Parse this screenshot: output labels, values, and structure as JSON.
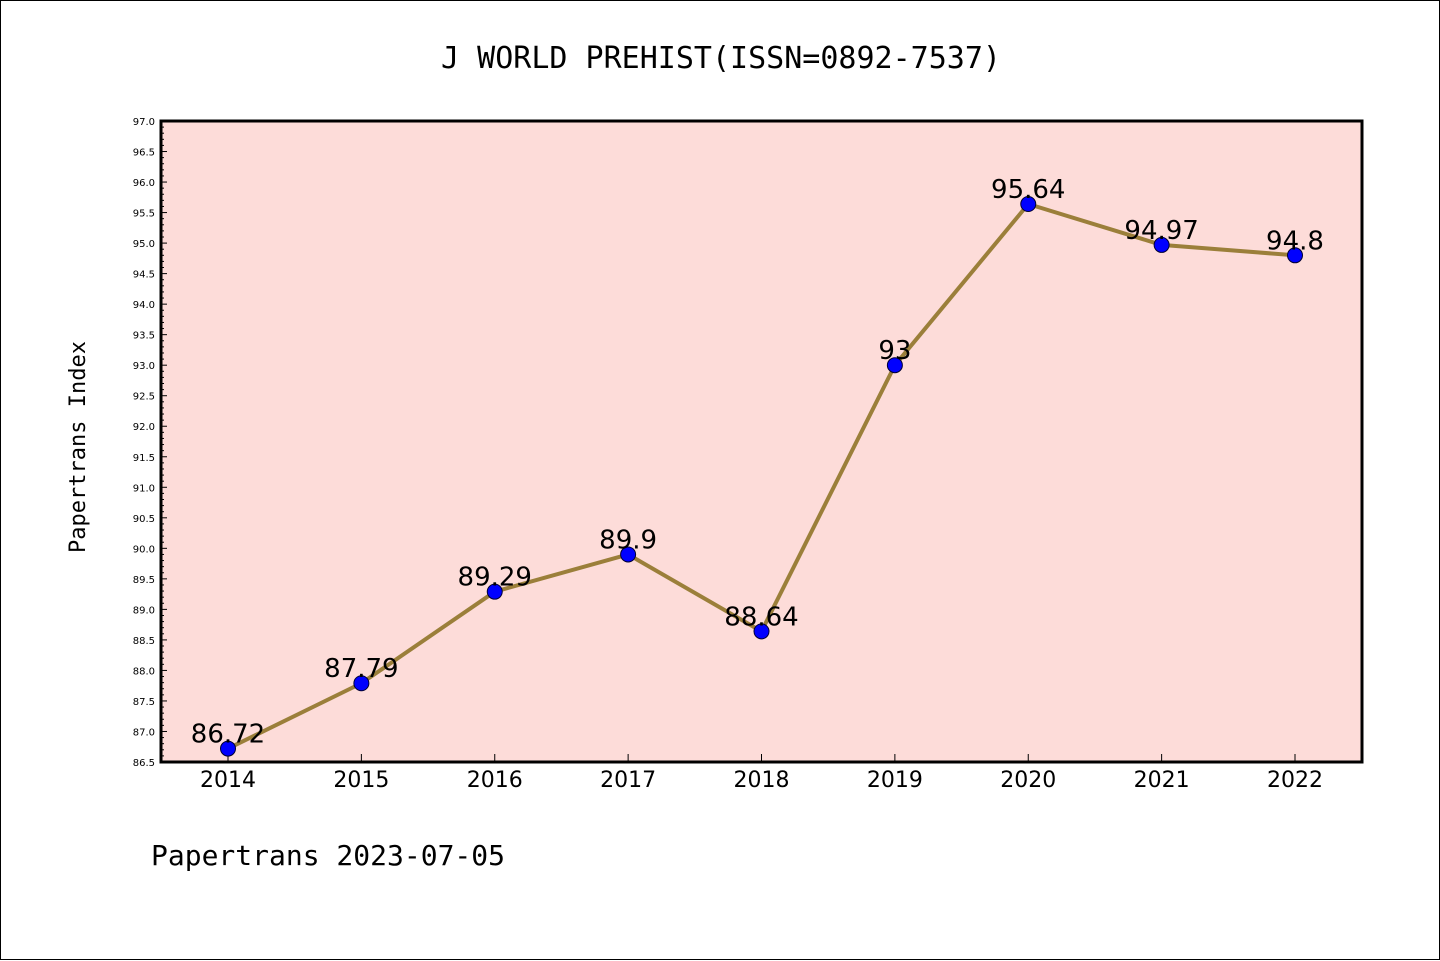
{
  "chart_data": {
    "type": "line",
    "title": "J WORLD PREHIST(ISSN=0892-7537)",
    "xlabel": "",
    "ylabel": "Papertrans Index",
    "categories": [
      "2014",
      "2015",
      "2016",
      "2017",
      "2018",
      "2019",
      "2020",
      "2021",
      "2022"
    ],
    "series": [
      {
        "values": [
          86.72,
          87.79,
          89.29,
          89.9,
          88.64,
          93,
          95.64,
          94.97,
          94.8
        ],
        "labels": [
          "86.72",
          "87.79",
          "89.29",
          "89.9",
          "88.64",
          "93",
          "95.64",
          "94.97",
          "94.8"
        ]
      }
    ],
    "ylim": [
      86.5,
      97.0
    ],
    "yticks": [
      "86.5",
      "87.0",
      "87.5",
      "88.0",
      "88.5",
      "89.0",
      "89.5",
      "90.0",
      "90.5",
      "91.0",
      "91.5",
      "92.0",
      "92.5",
      "93.0",
      "93.5",
      "94.0",
      "94.5",
      "95.0",
      "95.5",
      "96.0",
      "96.5",
      "97.0"
    ],
    "grid": false,
    "colors": {
      "line": "#9b7f3a",
      "marker": "#0000ff",
      "plot_background": "#fddcd9"
    }
  },
  "footer": {
    "text": "Papertrans 2023-07-05"
  }
}
